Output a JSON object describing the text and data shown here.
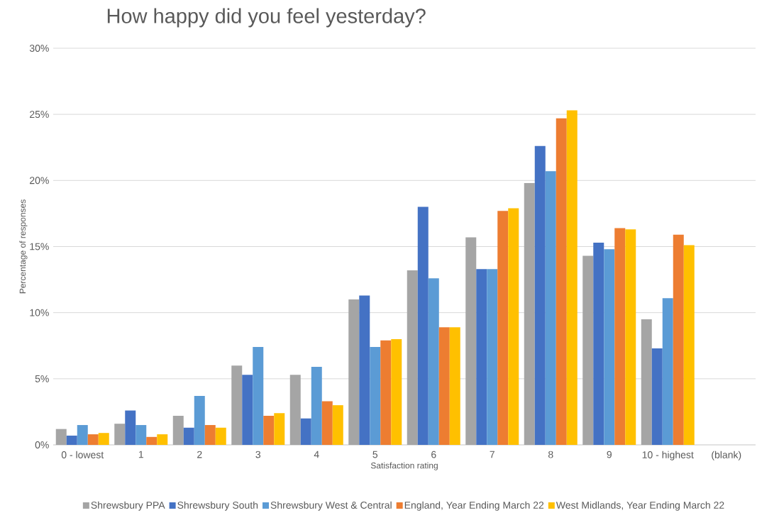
{
  "chart_data": {
    "type": "bar",
    "title": "How happy did you feel yesterday?",
    "xlabel": "Satisfaction rating",
    "ylabel": "Percentage of responses",
    "categories": [
      "0 - lowest",
      "1",
      "2",
      "3",
      "4",
      "5",
      "6",
      "7",
      "8",
      "9",
      "10 - highest",
      "(blank)"
    ],
    "series": [
      {
        "name": "Shrewsbury PPA",
        "color": "#a5a5a5",
        "values": [
          1.2,
          1.6,
          2.2,
          6.0,
          5.3,
          11.0,
          13.2,
          15.7,
          19.8,
          14.3,
          9.5,
          null
        ]
      },
      {
        "name": "Shrewsbury South",
        "color": "#4472c4",
        "values": [
          0.7,
          2.6,
          1.3,
          5.3,
          2.0,
          11.3,
          18.0,
          13.3,
          22.6,
          15.3,
          7.3,
          null
        ]
      },
      {
        "name": "Shrewsbury West & Central",
        "color": "#5b9bd5",
        "values": [
          1.5,
          1.5,
          3.7,
          7.4,
          5.9,
          7.4,
          12.6,
          13.3,
          20.7,
          14.8,
          11.1,
          null
        ]
      },
      {
        "name": "England, Year Ending March 22",
        "color": "#ed7d31",
        "values": [
          0.8,
          0.6,
          1.5,
          2.2,
          3.3,
          7.9,
          8.9,
          17.7,
          24.7,
          16.4,
          15.9,
          null
        ]
      },
      {
        "name": "West Midlands, Year Ending March 22",
        "color": "#ffc000",
        "values": [
          0.9,
          0.8,
          1.3,
          2.4,
          3.0,
          8.0,
          8.9,
          17.9,
          25.3,
          16.3,
          15.1,
          null
        ]
      }
    ],
    "ylim": [
      0,
      30
    ],
    "yticks": [
      {
        "value": 0,
        "label": "0%"
      },
      {
        "value": 5,
        "label": "5%"
      },
      {
        "value": 10,
        "label": "10%"
      },
      {
        "value": 15,
        "label": "15%"
      },
      {
        "value": 20,
        "label": "20%"
      },
      {
        "value": 25,
        "label": "25%"
      },
      {
        "value": 30,
        "label": "30%"
      }
    ],
    "grid": "y",
    "legend": "bottom"
  }
}
